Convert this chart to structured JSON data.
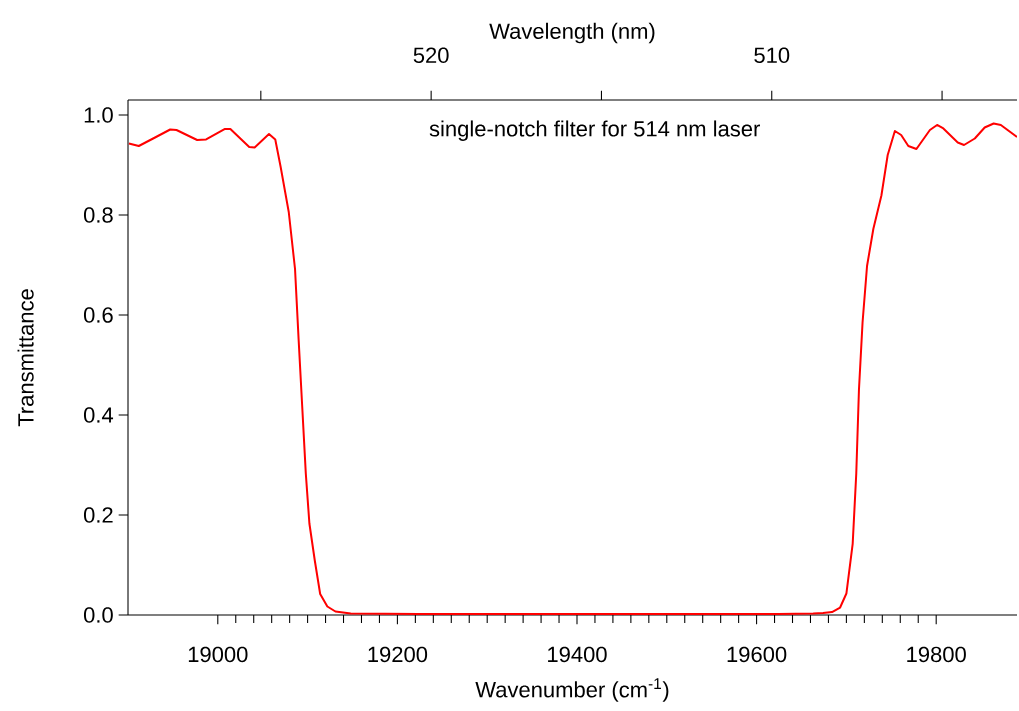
{
  "chart_data": {
    "type": "line",
    "annotations": [
      "single-notch filter for 514 nm laser"
    ],
    "xlabel": "Wavenumber (cm$^{-1}$)",
    "ylabel": "Transmittance",
    "x2label": "Wavelength (nm)",
    "xlim": [
      18900,
      19890
    ],
    "ylim": [
      0,
      1.03
    ],
    "xticks": [
      19000,
      19200,
      19400,
      19600,
      19800
    ],
    "yticks": [
      {
        "value": 0,
        "label": "0.0"
      },
      0.2,
      0.4,
      0.6,
      0.8,
      {
        "value": 1,
        "label": "1.0"
      }
    ],
    "x2lim": [
      528.9,
      502.8
    ],
    "x2ticks": [
      {
        "value": 525,
        "label": null
      },
      520,
      {
        "value": 515,
        "label": null
      },
      510,
      {
        "value": 505,
        "label": null
      }
    ],
    "series": [
      {
        "color": "#ff0000",
        "x": [
          18901,
          18912,
          18928,
          18947,
          18954,
          18977,
          18987,
          19008,
          19014,
          19035,
          19041,
          19057,
          19064,
          19070,
          19079,
          19086,
          19090,
          19094,
          19098,
          19102,
          19108,
          19114,
          19122,
          19131,
          19148,
          19224,
          19624,
          19663,
          19674,
          19684,
          19693,
          19700,
          19707,
          19711,
          19714,
          19718,
          19723,
          19730,
          19739,
          19746,
          19754,
          19761,
          19769,
          19778,
          19793,
          19801,
          19808,
          19824,
          19831,
          19843,
          19854,
          19864,
          19872,
          19890
        ],
        "values": [
          0.943,
          0.938,
          0.953,
          0.971,
          0.97,
          0.95,
          0.951,
          0.972,
          0.972,
          0.936,
          0.935,
          0.962,
          0.951,
          0.896,
          0.806,
          0.692,
          0.551,
          0.417,
          0.283,
          0.183,
          0.109,
          0.042,
          0.017,
          0.007,
          0.003,
          0.002,
          0.002,
          0.003,
          0.004,
          0.006,
          0.015,
          0.043,
          0.142,
          0.283,
          0.451,
          0.585,
          0.698,
          0.772,
          0.839,
          0.92,
          0.968,
          0.96,
          0.938,
          0.932,
          0.97,
          0.98,
          0.973,
          0.945,
          0.94,
          0.953,
          0.975,
          0.983,
          0.98,
          0.956
        ]
      }
    ]
  }
}
